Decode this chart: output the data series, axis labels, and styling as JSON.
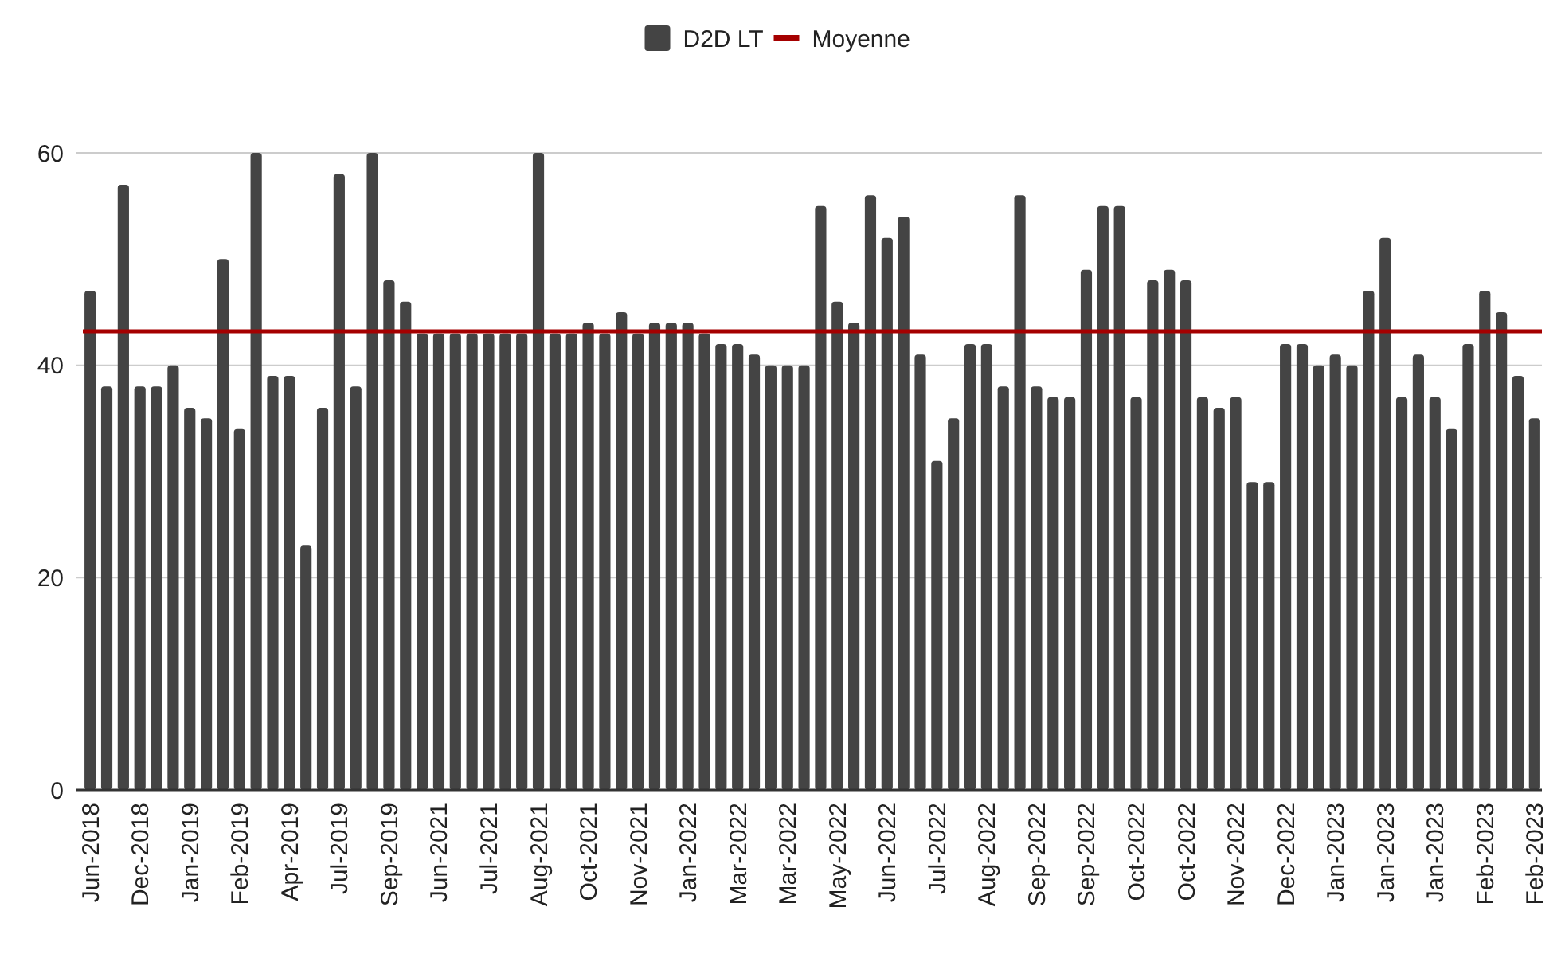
{
  "chart_data": {
    "type": "bar",
    "categories": [
      "Jun-2018",
      null,
      null,
      "Dec-2018",
      null,
      null,
      "Jan-2019",
      null,
      null,
      "Feb-2019",
      null,
      null,
      "Apr-2019",
      null,
      null,
      "Jul-2019",
      null,
      null,
      "Sep-2019",
      null,
      null,
      "Jun-2021",
      null,
      null,
      "Jul-2021",
      null,
      null,
      "Aug-2021",
      null,
      null,
      "Oct-2021",
      null,
      null,
      "Nov-2021",
      null,
      null,
      "Jan-2022",
      null,
      null,
      "Mar-2022",
      null,
      null,
      "Mar-2022",
      null,
      null,
      "May-2022",
      null,
      null,
      "Jun-2022",
      null,
      null,
      "Jul-2022",
      null,
      null,
      "Aug-2022",
      null,
      null,
      "Sep-2022",
      null,
      null,
      "Sep-2022",
      null,
      null,
      "Oct-2022",
      null,
      null,
      "Oct-2022",
      null,
      null,
      "Nov-2022",
      null,
      null,
      "Dec-2022",
      null,
      null,
      "Jan-2023",
      null,
      null,
      "Jan-2023",
      null,
      null,
      "Jan-2023",
      null,
      null,
      "Feb-2023",
      null,
      null,
      "Feb-2023"
    ],
    "series": [
      {
        "name": "D2D LT",
        "color": "#444444",
        "values": [
          47,
          38,
          57,
          38,
          38,
          40,
          36,
          35,
          50,
          34,
          60,
          39,
          39,
          23,
          36,
          58,
          38,
          60,
          48,
          46,
          43,
          43,
          43,
          43,
          43,
          43,
          43,
          60,
          43,
          43,
          44,
          43,
          45,
          43,
          44,
          44,
          44,
          43,
          42,
          42,
          41,
          40,
          40,
          40,
          55,
          46,
          44,
          56,
          52,
          54,
          41,
          31,
          35,
          42,
          42,
          38,
          56,
          38,
          37,
          37,
          49,
          55,
          55,
          37,
          48,
          49,
          48,
          37,
          36,
          37,
          29,
          29,
          42,
          42,
          40,
          41,
          40,
          47,
          52,
          37,
          41,
          37,
          34,
          42,
          47,
          45,
          39,
          35
        ]
      }
    ],
    "ref_lines": [
      {
        "axis": "y",
        "value": 43.2,
        "label": "Moyenne",
        "color": "#a50000"
      }
    ],
    "ylim": [
      0,
      60
    ],
    "yticks": [
      0,
      20,
      40,
      60
    ],
    "grid": "y",
    "legend": "top"
  }
}
